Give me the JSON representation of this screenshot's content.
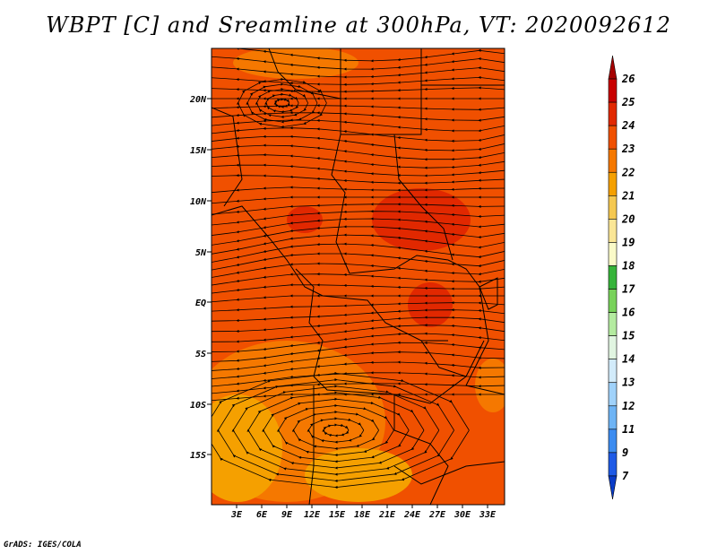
{
  "title": "WBPT [C] and Sreamline at 300hPa, VT: 2020092612",
  "credit": "GrADS: IGES/COLA",
  "lat_labels": [
    "20N",
    "15N",
    "10N",
    "5N",
    "EQ",
    "5S",
    "10S",
    "15S"
  ],
  "lon_labels": [
    "3E",
    "6E",
    "9E",
    "12E",
    "15E",
    "18E",
    "21E",
    "24E",
    "27E",
    "30E",
    "33E"
  ],
  "colorbar": {
    "labels": [
      "26",
      "25",
      "24",
      "23",
      "22",
      "21",
      "20",
      "19",
      "18",
      "17",
      "16",
      "15",
      "14",
      "13",
      "12",
      "11",
      "9",
      "7"
    ],
    "colors": [
      "#a50000",
      "#c80000",
      "#e12800",
      "#f05000",
      "#f57800",
      "#f5a000",
      "#f5c850",
      "#fae696",
      "#fafac8",
      "#36b43a",
      "#78d25a",
      "#b4eba0",
      "#e1f5e1",
      "#d2ebfa",
      "#a0d2fa",
      "#6eb4f5",
      "#3c8cf0",
      "#1e5ae6",
      "#0a3cc8"
    ]
  },
  "colors": {
    "background_field": "#f05000",
    "warm_patch": "#e12800",
    "cool_patch": "#f57800",
    "coolest_patch": "#f5a000"
  }
}
